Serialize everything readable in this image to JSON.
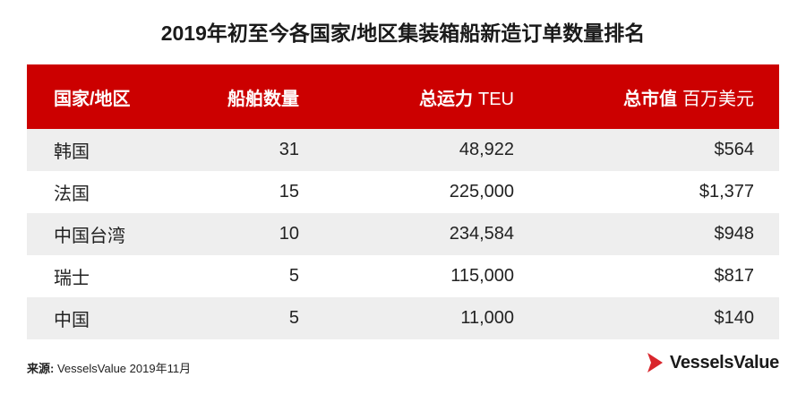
{
  "title": "2019年初至今各国家/地区集装箱船新造订单数量排名",
  "chart_data": {
    "type": "table",
    "columns": [
      {
        "label": "国家/地区",
        "unit": ""
      },
      {
        "label": "船舶数量",
        "unit": ""
      },
      {
        "label": "总运力",
        "unit": "TEU"
      },
      {
        "label": "总市值",
        "unit": "百万美元"
      }
    ],
    "rows": [
      {
        "region": "韩国",
        "vessels": "31",
        "capacity": "48,922",
        "value": "$564"
      },
      {
        "region": "法国",
        "vessels": "15",
        "capacity": "225,000",
        "value": "$1,377"
      },
      {
        "region": "中国台湾",
        "vessels": "10",
        "capacity": "234,584",
        "value": "$948"
      },
      {
        "region": "瑞士",
        "vessels": "5",
        "capacity": "115,000",
        "value": "$817"
      },
      {
        "region": "中国",
        "vessels": "5",
        "capacity": "11,000",
        "value": "$140"
      }
    ]
  },
  "source": {
    "label": "来源:",
    "text": " VesselsValue 2019年11月"
  },
  "logo": {
    "text": "VesselsValue"
  },
  "colors": {
    "header_bg": "#cc0000",
    "row_alt_bg": "#eeeeee",
    "logo_red": "#d9262c"
  }
}
